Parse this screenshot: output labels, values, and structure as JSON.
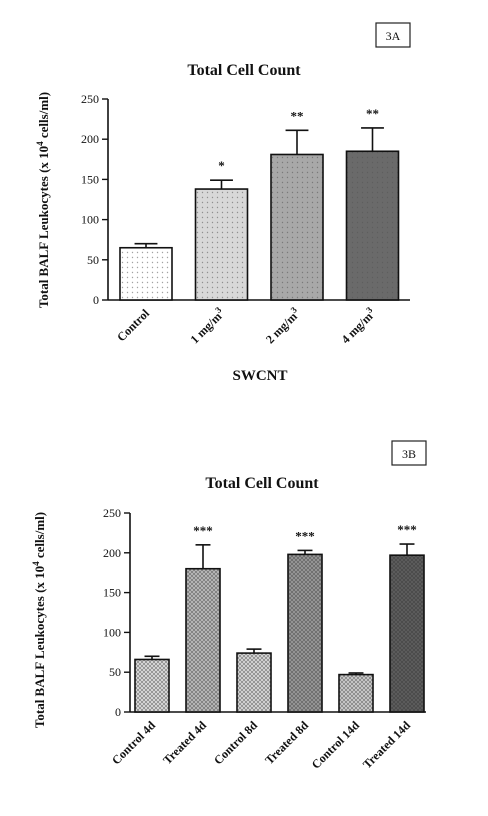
{
  "chart_data": [
    {
      "type": "bar",
      "panel_label": "3A",
      "title": "Total Cell Count",
      "ylabel": "Total BALF Leukocytes (x 10",
      "ylabel_exp": "4",
      "ylabel_tail": " cells/ml)",
      "xlabel": "SWCNT",
      "ylim": [
        0,
        250
      ],
      "yticks": [
        "0",
        "50",
        "100",
        "150",
        "200",
        "250"
      ],
      "categories": [
        "Control",
        "1 mg/m",
        "2 mg/m",
        "4 mg/m"
      ],
      "category_sup": [
        "",
        "3",
        "3",
        "3"
      ],
      "values": [
        65,
        138,
        181,
        185
      ],
      "errors": [
        5,
        11,
        30,
        29
      ],
      "significance": [
        "",
        "*",
        "**",
        "**"
      ],
      "fills": [
        "#ffffff",
        "#d8d8d8",
        "#a8a8a8",
        "#6a6a6a"
      ]
    },
    {
      "type": "bar",
      "panel_label": "3B",
      "title": "Total Cell Count",
      "ylabel": "Total BALF Leukocytes (x 10",
      "ylabel_exp": "4",
      "ylabel_tail": " cells/ml)",
      "xlabel": "",
      "ylim": [
        0,
        250
      ],
      "yticks": [
        "0",
        "50",
        "100",
        "150",
        "200",
        "250"
      ],
      "categories": [
        "Control 4d",
        "Treated 4d",
        "Control 8d",
        "Treated 8d",
        "Control 14d",
        "Treated 14d"
      ],
      "category_sup": [
        "",
        "",
        "",
        "",
        "",
        ""
      ],
      "values": [
        66,
        180,
        74,
        198,
        47,
        197
      ],
      "errors": [
        4,
        30,
        5,
        5,
        2,
        14
      ],
      "significance": [
        "",
        "***",
        "",
        "***",
        "",
        "***"
      ],
      "fills": [
        "#e0e0e0",
        "#bdbdbd",
        "#dcdcdc",
        "#9a9a9a",
        "#d0d0d0",
        "#5e5e5e"
      ]
    }
  ]
}
